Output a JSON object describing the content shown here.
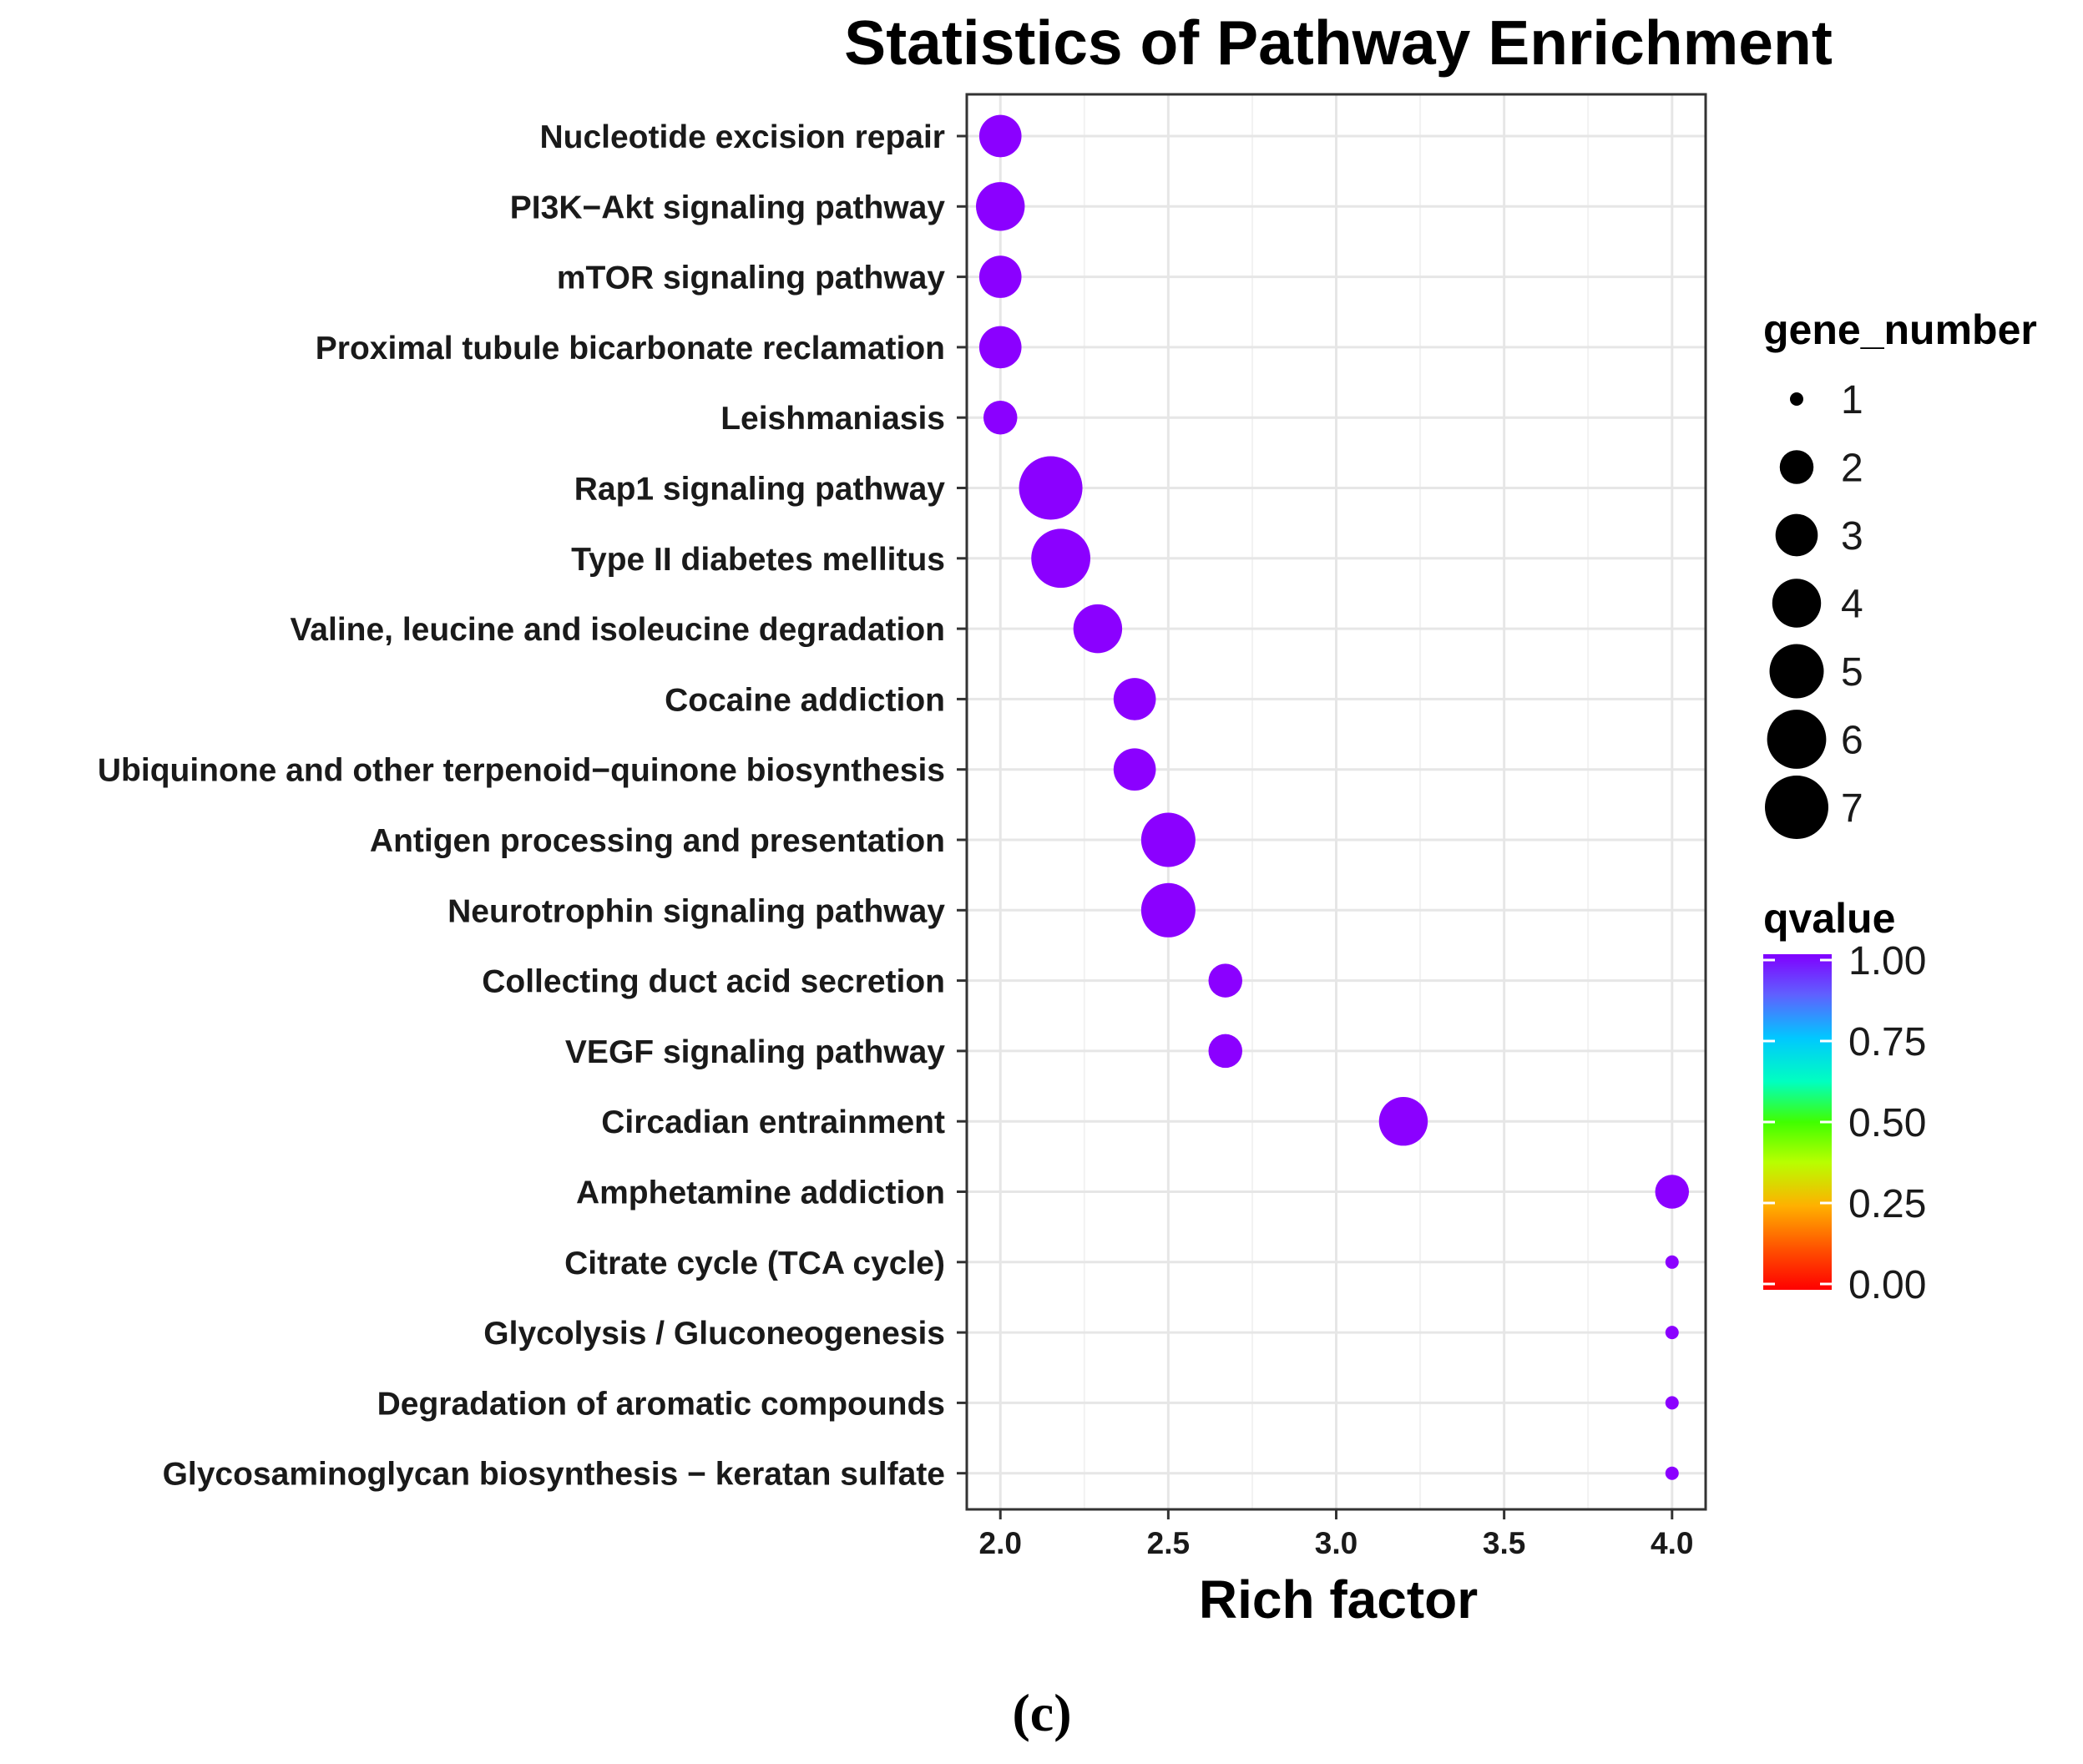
{
  "chart_data": {
    "type": "scatter",
    "title": "Statistics of Pathway Enrichment",
    "xlabel": "Rich factor",
    "ylabel": "",
    "xlim": [
      1.9,
      4.1
    ],
    "xticks": [
      "2.0",
      "2.5",
      "3.0",
      "3.5",
      "4.0"
    ],
    "grid": true,
    "categories": [
      "Nucleotide excision repair",
      "PI3K−Akt signaling pathway",
      "mTOR signaling pathway",
      "Proximal tubule bicarbonate reclamation",
      "Leishmaniasis",
      "Rap1 signaling pathway",
      "Type II diabetes mellitus",
      "Valine, leucine and isoleucine degradation",
      "Cocaine addiction",
      "Ubiquinone and other terpenoid−quinone biosynthesis",
      "Antigen processing and presentation",
      "Neurotrophin signaling pathway",
      "Collecting duct acid secretion",
      "VEGF signaling pathway",
      "Circadian entrainment",
      "Amphetamine addiction",
      "Citrate cycle (TCA cycle)",
      "Glycolysis / Gluconeogenesis",
      "Degradation of aromatic compounds",
      "Glycosaminoglycan biosynthesis − keratan sulfate"
    ],
    "rich_factor": [
      2.0,
      2.0,
      2.0,
      2.0,
      2.0,
      2.15,
      2.18,
      2.29,
      2.4,
      2.4,
      2.5,
      2.5,
      2.67,
      2.67,
      3.2,
      4.0,
      4.0,
      4.0,
      4.0,
      4.0
    ],
    "gene_number": [
      3,
      4,
      3,
      3,
      2,
      7,
      6,
      4,
      3,
      3,
      5,
      5,
      2,
      2,
      4,
      2,
      1,
      1,
      1,
      1
    ],
    "qvalue": [
      1.0,
      1.0,
      1.0,
      1.0,
      1.0,
      1.0,
      1.0,
      1.0,
      1.0,
      1.0,
      1.0,
      1.0,
      1.0,
      1.0,
      1.0,
      1.0,
      1.0,
      1.0,
      1.0,
      1.0
    ],
    "legend": {
      "size_title": "gene_number",
      "size_labels": [
        "1",
        "2",
        "3",
        "4",
        "5",
        "6",
        "7"
      ],
      "color_title": "qvalue",
      "color_labels": [
        "1.00",
        "0.75",
        "0.50",
        "0.25",
        "0.00"
      ],
      "placement": "right"
    },
    "point_color": "#8b00ff",
    "caption": "(c)"
  }
}
